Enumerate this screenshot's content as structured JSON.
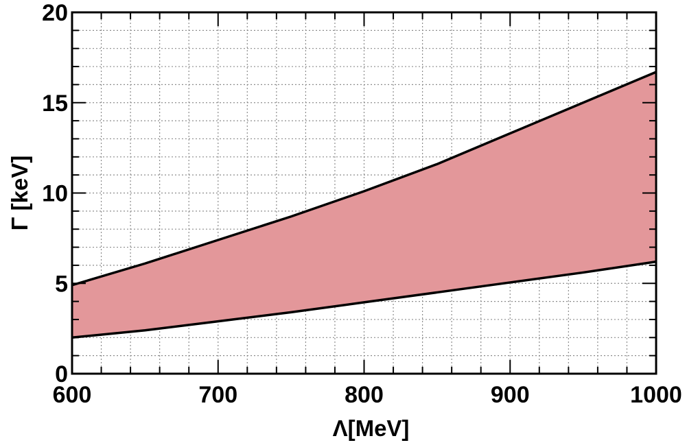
{
  "chart_data": {
    "type": "area",
    "xlabel": "Λ[MeV]",
    "ylabel": "Γ [keV]",
    "xlim": [
      600,
      1000
    ],
    "ylim": [
      0,
      20
    ],
    "x_ticks": [
      600,
      700,
      800,
      900,
      1000
    ],
    "y_ticks": [
      0,
      5,
      10,
      15,
      20
    ],
    "x_tick_labels": [
      "600",
      "700",
      "800",
      "900",
      "1000"
    ],
    "y_tick_labels": [
      "0",
      "5",
      "10",
      "15",
      "20"
    ],
    "grid": true,
    "band": {
      "x": [
        600,
        650,
        700,
        750,
        800,
        850,
        900,
        950,
        1000
      ],
      "lower": [
        2.0,
        2.4,
        2.9,
        3.4,
        3.95,
        4.5,
        5.05,
        5.6,
        6.2
      ],
      "upper": [
        4.9,
        6.1,
        7.4,
        8.7,
        10.1,
        11.6,
        13.3,
        15.0,
        16.7
      ],
      "fill_color": "#e3979a",
      "line_color": "#000000"
    }
  }
}
